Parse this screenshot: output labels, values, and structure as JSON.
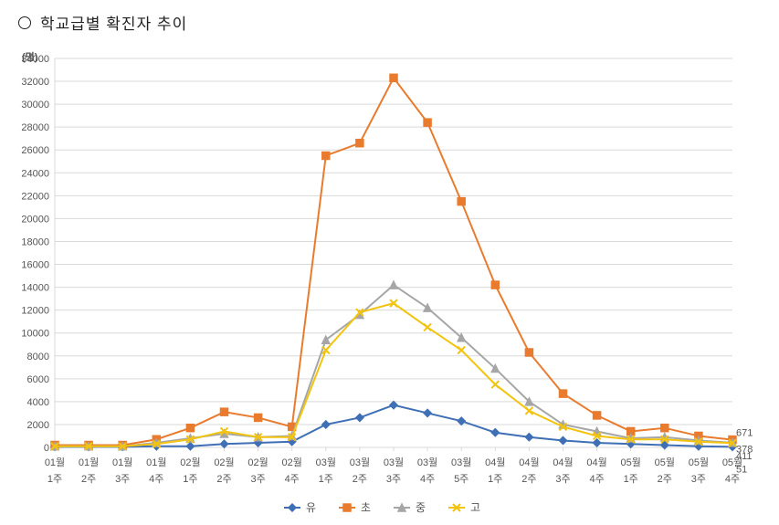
{
  "title": "학교급별 확진자 추이",
  "chart": {
    "type": "line",
    "y_axis_title": "(명)",
    "background_color": "#ffffff",
    "grid_color": "#d9d9d9",
    "axis_color": "#888888",
    "label_color": "#555555",
    "label_fontsize": 11,
    "ylim": [
      0,
      34000
    ],
    "ytick_step": 2000,
    "xlabels_line1": [
      "01월",
      "01월",
      "01월",
      "01월",
      "02월",
      "02월",
      "02월",
      "02월",
      "03월",
      "03월",
      "03월",
      "03월",
      "03월",
      "04월",
      "04월",
      "04월",
      "04월",
      "05월",
      "05월",
      "05월",
      "05월"
    ],
    "xlabels_line2": [
      "1주",
      "2주",
      "3주",
      "4주",
      "1주",
      "2주",
      "3주",
      "4주",
      "1주",
      "2주",
      "3주",
      "4주",
      "5주",
      "1주",
      "2주",
      "3주",
      "4주",
      "1주",
      "2주",
      "3주",
      "4주"
    ],
    "series": [
      {
        "name": "유",
        "color": "#3f6fb5",
        "marker": "diamond",
        "data": [
          50,
          50,
          50,
          100,
          100,
          300,
          400,
          500,
          2000,
          2600,
          3700,
          3000,
          2300,
          1300,
          900,
          600,
          400,
          300,
          200,
          100,
          51
        ],
        "end_label": "51"
      },
      {
        "name": "초",
        "color": "#e97b2e",
        "marker": "square",
        "data": [
          200,
          200,
          200,
          700,
          1700,
          3100,
          2600,
          1800,
          25500,
          26600,
          32300,
          28400,
          21500,
          14200,
          8300,
          4700,
          2800,
          1400,
          1700,
          1000,
          671
        ],
        "end_label": "671"
      },
      {
        "name": "중",
        "color": "#a6a6a6",
        "marker": "triangle",
        "data": [
          100,
          100,
          100,
          400,
          800,
          1200,
          900,
          1000,
          9400,
          11600,
          14200,
          12200,
          9600,
          6900,
          4000,
          2000,
          1400,
          800,
          900,
          600,
          411
        ],
        "end_label": "411"
      },
      {
        "name": "고",
        "color": "#f2c40f",
        "marker": "cross",
        "data": [
          100,
          100,
          100,
          300,
          700,
          1400,
          900,
          900,
          8500,
          11800,
          12600,
          10500,
          8500,
          5500,
          3200,
          1800,
          1000,
          700,
          700,
          500,
          378
        ],
        "end_label": "378"
      }
    ],
    "legend_order": [
      "유",
      "초",
      "중",
      "고"
    ]
  }
}
